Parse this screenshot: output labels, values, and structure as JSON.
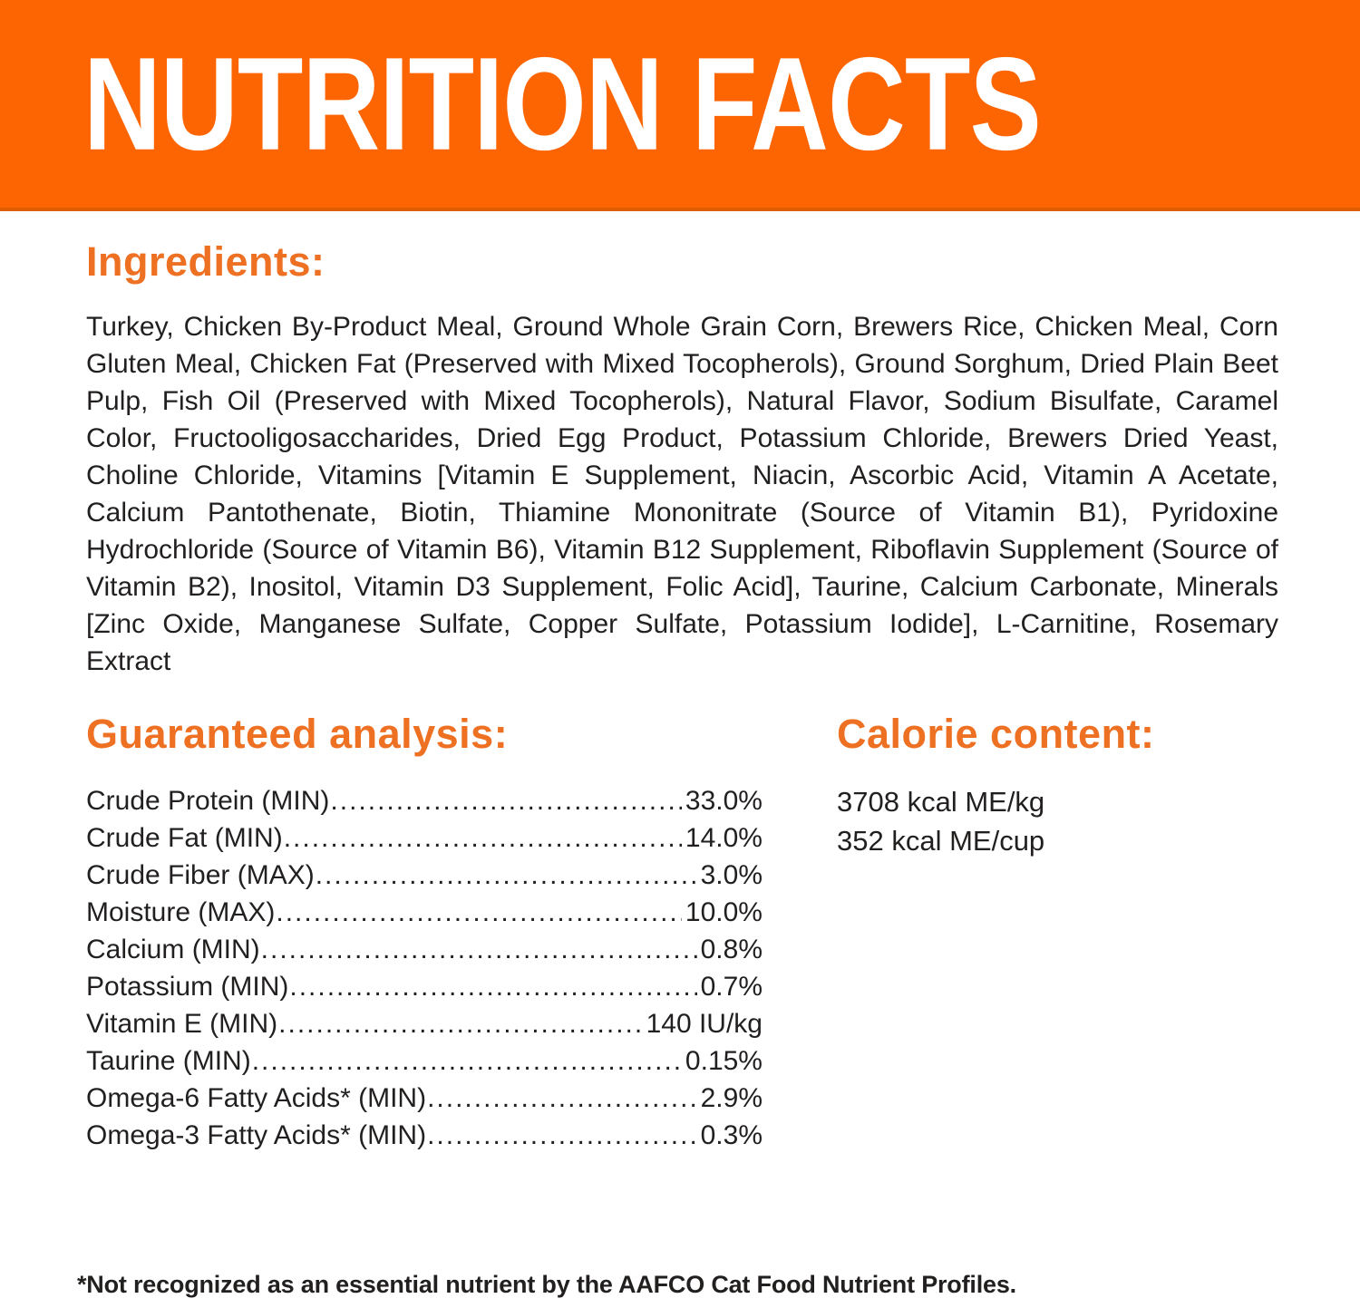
{
  "colors": {
    "banner_orange": "#fc6502",
    "banner_edge": "#e05e03",
    "heading_orange": "#ee7023",
    "text_dark": "#221f1f",
    "title_white": "#ffffff"
  },
  "header": {
    "title": "NUTRITION FACTS"
  },
  "ingredients": {
    "heading": "Ingredients:",
    "text": "Turkey, Chicken By-Product Meal, Ground Whole Grain Corn, Brewers Rice, Chicken Meal, Corn Gluten Meal, Chicken Fat (Preserved with Mixed Tocopherols), Ground Sorghum, Dried Plain Beet Pulp, Fish Oil (Preserved with Mixed Tocopherols), Natural Flavor, Sodium Bisulfate, Caramel Color, Fructooligosaccharides, Dried Egg Product, Potassium Chloride, Brewers Dried Yeast, Choline Chloride, Vitamins [Vitamin E Supplement, Niacin, Ascorbic Acid, Vitamin A Acetate, Calcium Pantothenate, Biotin, Thiamine Mononitrate (Source of Vitamin B1), Pyridoxine Hydrochloride (Source of Vitamin B6), Vitamin B12 Supplement, Riboflavin Supplement (Source of Vitamin B2), Inositol, Vitamin D3 Supplement, Folic Acid], Taurine, Calcium Carbonate, Minerals [Zinc Oxide, Manganese Sulfate, Copper Sulfate, Potassium Iodide], L-Carnitine, Rosemary Extract"
  },
  "guaranteed_analysis": {
    "heading": "Guaranteed analysis:",
    "rows": [
      {
        "label": "Crude Protein (MIN)",
        "value": "33.0%"
      },
      {
        "label": "Crude Fat (MIN)",
        "value": "14.0%"
      },
      {
        "label": "Crude Fiber (MAX)",
        "value": "3.0%"
      },
      {
        "label": "Moisture (MAX)",
        "value": "10.0%"
      },
      {
        "label": "Calcium (MIN)",
        "value": "0.8%"
      },
      {
        "label": "Potassium (MIN)",
        "value": "0.7%"
      },
      {
        "label": "Vitamin E (MIN)",
        "value": "140 IU/kg"
      },
      {
        "label": "Taurine (MIN)",
        "value": "0.15%"
      },
      {
        "label": "Omega-6 Fatty Acids* (MIN)",
        "value": "2.9%"
      },
      {
        "label": "Omega-3 Fatty Acids* (MIN)",
        "value": "0.3%"
      }
    ]
  },
  "calorie_content": {
    "heading": "Calorie content:",
    "lines": [
      "3708 kcal ME/kg",
      "352 kcal ME/cup"
    ]
  },
  "footnote": "*Not recognized as an essential nutrient by the AAFCO Cat Food Nutrient Profiles."
}
